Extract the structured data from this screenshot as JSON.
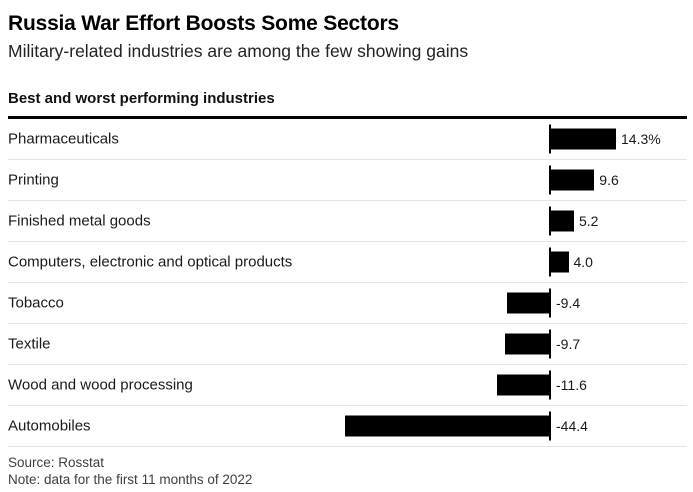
{
  "header": {
    "title": "Russia War Effort Boosts Some Sectors",
    "subtitle": "Military-related industries are among the few showing gains"
  },
  "chart": {
    "section_title": "Best and worst performing industries"
  },
  "chart_data": {
    "type": "bar",
    "orientation": "horizontal",
    "title": "Best and worst performing industries",
    "categories": [
      "Pharmaceuticals",
      "Printing",
      "Finished metal goods",
      "Computers, electronic and optical products",
      "Tobacco",
      "Textile",
      "Wood and wood processing",
      "Automobiles"
    ],
    "values": [
      14.3,
      9.6,
      5.2,
      4.0,
      -9.4,
      -9.7,
      -11.6,
      -44.4
    ],
    "value_labels": [
      "14.3%",
      "9.6",
      "5.2",
      "4.0",
      "-9.4",
      "-9.7",
      "-11.6",
      "-44.4"
    ],
    "unit": "percent",
    "xlim": [
      -44.4,
      14.3
    ],
    "baseline": 0,
    "grid": false,
    "legend": false,
    "bar_color": "#000000"
  },
  "footer": {
    "source": "Source: Rosstat",
    "note": "Note: data for the first 11 months of 2022"
  },
  "colors": {
    "bar": "#000000",
    "rule": "#000000",
    "separator": "#e4e4e4",
    "text_primary": "#1a1a1a",
    "text_secondary": "#3f3f3f"
  }
}
